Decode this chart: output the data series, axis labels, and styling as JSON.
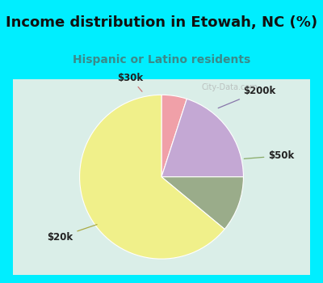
{
  "title": "Income distribution in Etowah, NC (%)",
  "subtitle": "Hispanic or Latino residents",
  "title_color": "#111111",
  "subtitle_color": "#3a8a8a",
  "background_color": "#00eeff",
  "chart_bg_top": "#e8f5f0",
  "chart_bg_bot": "#c8e8e0",
  "slices": [
    {
      "label": "$30k",
      "value": 5,
      "color": "#f0a0a8"
    },
    {
      "label": "$200k",
      "value": 20,
      "color": "#c4a8d4"
    },
    {
      "label": "$50k",
      "value": 11,
      "color": "#9aac8a"
    },
    {
      "label": "$20k",
      "value": 64,
      "color": "#f0f08a"
    }
  ],
  "watermark": "City-Data.com",
  "label_fontsize": 8.5,
  "title_fontsize": 13,
  "subtitle_fontsize": 10
}
